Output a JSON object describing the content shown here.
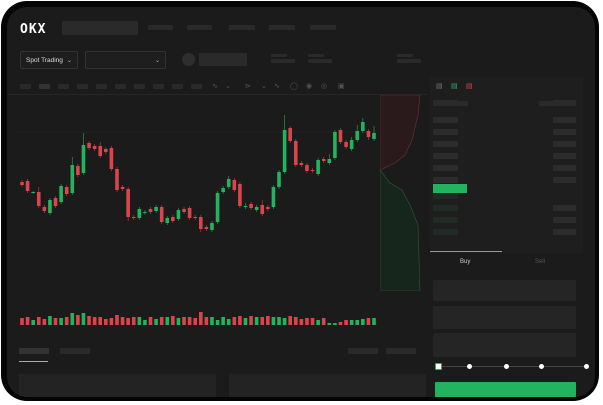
{
  "brand": {
    "logo_text": "OKX"
  },
  "header": {
    "market_selector_label": "Spot Trading",
    "chevron_icon": "chevron-down-icon"
  },
  "trade": {
    "tabs": [
      {
        "label": "Buy",
        "active": true
      },
      {
        "label": "Sell",
        "active": false
      }
    ],
    "leverage_slider_percent": 0
  },
  "colors": {
    "up": "#23b35f",
    "down": "#d9454b",
    "background": "#1b1b1b",
    "placeholder": "#2a2a2a"
  },
  "chart_data": {
    "type": "candlestick",
    "candles": [
      [
        118,
        115,
        120,
        113
      ],
      [
        119,
        109,
        121,
        107
      ],
      [
        107,
        108,
        109,
        106
      ],
      [
        108,
        94,
        113,
        92
      ],
      [
        93,
        89,
        95,
        87
      ],
      [
        87,
        100,
        102,
        85
      ],
      [
        102,
        94,
        104,
        92
      ],
      [
        98,
        114,
        116,
        96
      ],
      [
        113,
        106,
        115,
        104
      ],
      [
        107,
        135,
        143,
        105
      ],
      [
        134,
        125,
        136,
        123
      ],
      [
        127,
        155,
        167,
        125
      ],
      [
        157,
        152,
        159,
        150
      ],
      [
        154,
        151,
        156,
        149
      ],
      [
        154,
        144,
        158,
        142
      ],
      [
        151,
        148,
        153,
        146
      ],
      [
        152,
        131,
        154,
        129
      ],
      [
        131,
        110,
        133,
        108
      ],
      [
        113,
        111,
        115,
        109
      ],
      [
        111,
        83,
        113,
        79
      ],
      [
        83,
        82,
        85,
        80
      ],
      [
        82,
        91,
        93,
        80
      ],
      [
        87,
        88,
        90,
        85
      ],
      [
        91,
        88,
        93,
        86
      ],
      [
        89,
        93,
        95,
        87
      ],
      [
        93,
        78,
        95,
        76
      ],
      [
        77,
        82,
        84,
        75
      ],
      [
        83,
        79,
        85,
        77
      ],
      [
        81,
        90,
        92,
        79
      ],
      [
        91,
        88,
        93,
        86
      ],
      [
        92,
        82,
        94,
        80
      ],
      [
        83,
        82,
        85,
        80
      ],
      [
        83,
        71,
        85,
        68
      ],
      [
        73,
        71,
        75,
        69
      ],
      [
        70,
        77,
        79,
        68
      ],
      [
        78,
        107,
        109,
        76
      ],
      [
        108,
        112,
        114,
        106
      ],
      [
        113,
        121,
        124,
        111
      ],
      [
        120,
        110,
        122,
        108
      ],
      [
        116,
        94,
        118,
        92
      ],
      [
        93,
        94,
        97,
        91
      ],
      [
        96,
        92,
        98,
        90
      ],
      [
        90,
        93,
        95,
        88
      ],
      [
        95,
        86,
        100,
        84
      ],
      [
        93,
        91,
        95,
        89
      ],
      [
        93,
        113,
        115,
        91
      ],
      [
        113,
        128,
        130,
        111
      ],
      [
        128,
        170,
        185,
        126
      ],
      [
        172,
        159,
        174,
        157
      ],
      [
        159,
        135,
        161,
        133
      ],
      [
        137,
        135,
        139,
        133
      ],
      [
        135,
        129,
        137,
        127
      ],
      [
        130,
        129,
        132,
        127
      ],
      [
        126,
        140,
        142,
        124
      ],
      [
        141,
        139,
        143,
        137
      ],
      [
        137,
        141,
        146,
        135
      ],
      [
        142,
        168,
        170,
        140
      ],
      [
        170,
        158,
        172,
        156
      ],
      [
        158,
        153,
        160,
        151
      ],
      [
        151,
        160,
        163,
        149
      ],
      [
        160,
        169,
        175,
        158
      ],
      [
        169,
        178,
        182,
        167
      ],
      [
        169,
        163,
        171,
        160
      ],
      [
        161,
        167,
        174,
        159
      ]
    ],
    "volume": [
      7,
      8,
      5,
      8,
      6,
      9,
      7,
      7,
      8,
      12,
      10,
      12,
      9,
      8,
      8,
      6,
      7,
      10,
      8,
      7,
      8,
      8,
      5,
      8,
      6,
      8,
      8,
      9,
      7,
      8,
      8,
      7,
      13,
      8,
      8,
      5,
      8,
      6,
      8,
      9,
      7,
      9,
      8,
      8,
      9,
      8,
      8,
      7,
      9,
      8,
      6,
      7,
      7,
      5,
      7,
      2,
      2,
      3,
      5,
      5,
      5,
      6,
      7,
      7
    ]
  }
}
